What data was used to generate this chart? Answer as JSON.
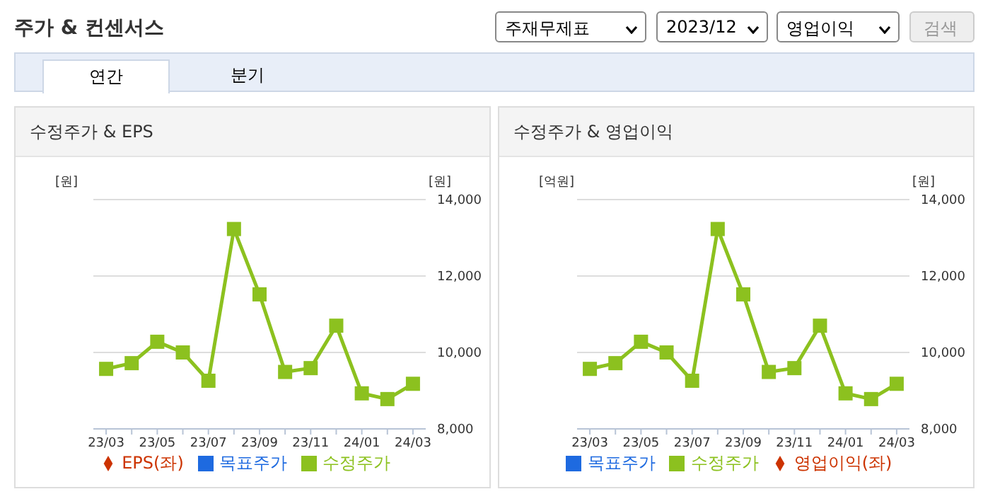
{
  "chart_data": [
    {
      "type": "other",
      "title": "주가 & 컨센서스",
      "annotations": [
        "주재무제표",
        "2023/12",
        "영업이익",
        "검색",
        "연간",
        "분기"
      ]
    },
    {
      "type": "line",
      "title": "수정주가 & EPS",
      "ylabel": "[원]",
      "y2label": "[원]",
      "categories": [
        "23/03",
        null,
        "23/05",
        null,
        "23/07",
        null,
        "23/09",
        null,
        "23/11",
        null,
        "24/01",
        null,
        "24/03"
      ],
      "series": [
        {
          "name": "목표주가",
          "type": "bar",
          "color": "#1e6ae0",
          "values": [
            null,
            null,
            null,
            null,
            null,
            null,
            null,
            null,
            null,
            null,
            null,
            null,
            null
          ]
        },
        {
          "name": "EPS(좌)",
          "type": "line",
          "marker": "diamond",
          "color": "#cc3300",
          "values": [
            null,
            null,
            null,
            null,
            null,
            null,
            null,
            null,
            null,
            null,
            null,
            null,
            null
          ]
        },
        {
          "name": "수정주가",
          "type": "line",
          "marker": "square",
          "axis": "y2",
          "color": "#8cc11f",
          "values": [
            9570,
            9720,
            10280,
            10000,
            9260,
            13230,
            11520,
            9490,
            9590,
            10700,
            8930,
            8780,
            9180
          ]
        }
      ],
      "y2lim": [
        8000,
        14000
      ],
      "y2ticks": [
        {
          "value": 8000,
          "label": "8,000"
        },
        {
          "value": 10000,
          "label": "10,000"
        },
        {
          "value": 12000,
          "label": "12,000"
        },
        {
          "value": 14000,
          "label": "14,000"
        }
      ],
      "grid": "y",
      "legend": "bottom"
    },
    {
      "type": "line",
      "title": "수정주가 & 영업이익",
      "ylabel": "[억원]",
      "y2label": "[원]",
      "categories": [
        "23/03",
        null,
        "23/05",
        null,
        "23/07",
        null,
        "23/09",
        null,
        "23/11",
        null,
        "24/01",
        null,
        "24/03"
      ],
      "series": [
        {
          "name": "목표주가",
          "type": "bar",
          "color": "#1e6ae0",
          "values": [
            null,
            null,
            null,
            null,
            null,
            null,
            null,
            null,
            null,
            null,
            null,
            null,
            null
          ]
        },
        {
          "name": "영업이익(좌)",
          "type": "line",
          "marker": "diamond",
          "color": "#cc3300",
          "values": [
            null,
            null,
            null,
            null,
            null,
            null,
            null,
            null,
            null,
            null,
            null,
            null,
            null
          ]
        },
        {
          "name": "수정주가",
          "type": "line",
          "marker": "square",
          "axis": "y2",
          "color": "#8cc11f",
          "values": [
            9570,
            9720,
            10280,
            10000,
            9260,
            13230,
            11520,
            9490,
            9590,
            10700,
            8930,
            8780,
            9180
          ]
        }
      ],
      "y2lim": [
        8000,
        14000
      ],
      "y2ticks": [
        {
          "value": 8000,
          "label": "8,000"
        },
        {
          "value": 10000,
          "label": "10,000"
        },
        {
          "value": 12000,
          "label": "12,000"
        },
        {
          "value": 14000,
          "label": "14,000"
        }
      ],
      "grid": "y",
      "legend": "bottom"
    }
  ]
}
